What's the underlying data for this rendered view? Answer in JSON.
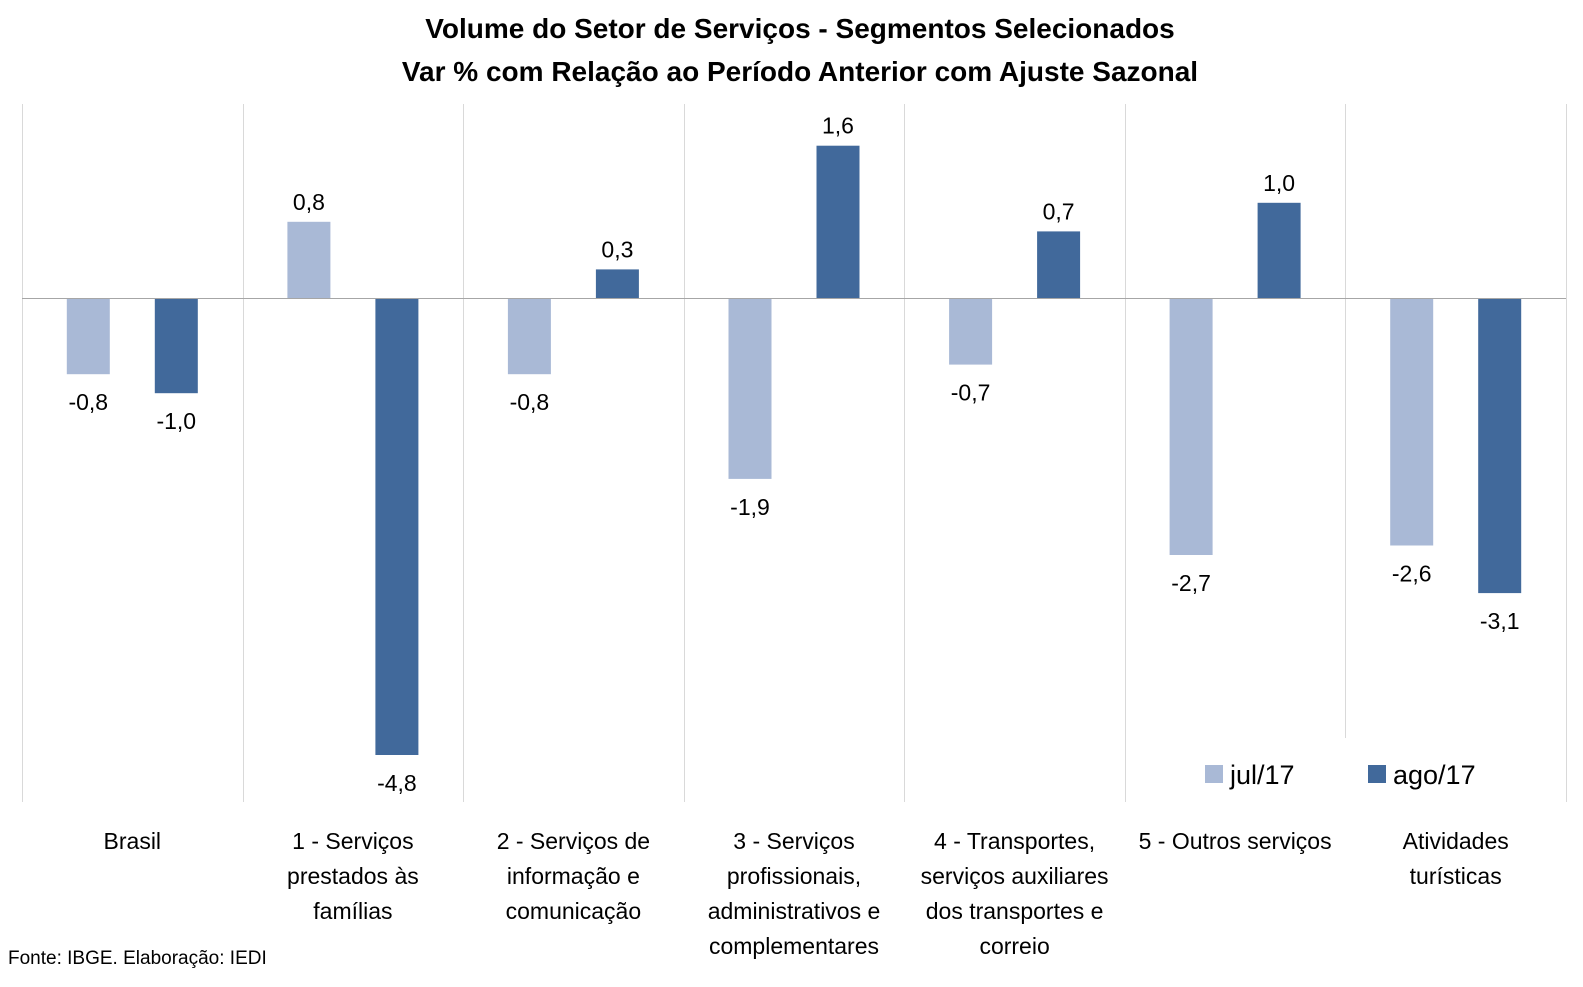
{
  "chart_data": {
    "type": "bar",
    "title": "Volume do Setor de Serviços - Segmentos Selecionados",
    "subtitle": "Var % com Relação ao Período Anterior com Ajuste Sazonal",
    "categories": [
      [
        "Brasil"
      ],
      [
        "1 - Serviços",
        "prestados às",
        "famílias"
      ],
      [
        "2 - Serviços de",
        "informação e",
        "comunicação"
      ],
      [
        "3 - Serviços",
        "profissionais,",
        "administrativos e",
        "complementares"
      ],
      [
        "4 - Transportes,",
        "serviços auxiliares",
        "dos transportes e",
        "correio"
      ],
      [
        "5 - Outros serviços"
      ],
      [
        "Atividades",
        "turísticas"
      ]
    ],
    "series": [
      {
        "name": "jul/17",
        "values": [
          -0.8,
          0.8,
          -0.8,
          -1.9,
          -0.7,
          -2.7,
          -2.6
        ],
        "labels": [
          "-0,8",
          "0,8",
          "-0,8",
          "-1,9",
          "-0,7",
          "-2,7",
          "-2,6"
        ],
        "color": "#A9B9D6"
      },
      {
        "name": "ago/17",
        "values": [
          -1.0,
          -4.8,
          0.3,
          1.6,
          0.7,
          1.0,
          -3.1
        ],
        "labels": [
          "-1,0",
          "-4,8",
          "0,3",
          "1,6",
          "0,7",
          "1,0",
          "-3,1"
        ],
        "color": "#41699B"
      }
    ],
    "ylim": [
      -5.3,
      2.0
    ],
    "legend": "bottom-right",
    "grid": "vertical category separators",
    "xlabel": "",
    "ylabel": ""
  },
  "source": "Fonte: IBGE. Elaboração: IEDI"
}
